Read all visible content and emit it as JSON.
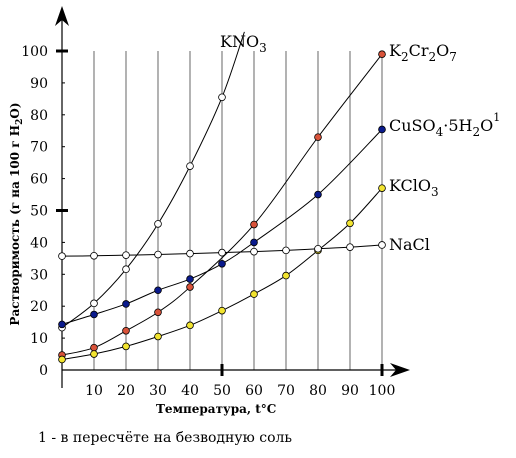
{
  "chart_data": {
    "type": "line",
    "xlabel": "Температура, t°C",
    "ylabel": "Растворимость (г на 100 г H₂O)",
    "xlim": [
      0,
      100
    ],
    "ylim": [
      0,
      100
    ],
    "x_ticks": [
      10,
      20,
      30,
      40,
      50,
      60,
      70,
      80,
      90,
      100
    ],
    "y_ticks": [
      0,
      10,
      20,
      30,
      40,
      50,
      60,
      70,
      80,
      90,
      100
    ],
    "grid": "vertical",
    "series": [
      {
        "name": "KNO3",
        "color": "#ffffff",
        "points": [
          [
            0,
            13.3
          ],
          [
            10,
            20.9
          ],
          [
            20,
            31.6
          ],
          [
            30,
            45.8
          ],
          [
            40,
            63.9
          ],
          [
            50,
            85.5
          ]
        ],
        "extend_to": [
          57,
          106
        ]
      },
      {
        "name": "K2Cr2O7",
        "color": "#d9533a",
        "points": [
          [
            0,
            4.7
          ],
          [
            10,
            7.0
          ],
          [
            20,
            12.3
          ],
          [
            30,
            18.1
          ],
          [
            40,
            26.0
          ],
          [
            60,
            45.6
          ],
          [
            80,
            73.0
          ],
          [
            100,
            99.0
          ]
        ]
      },
      {
        "name": "CuSO4·5H2O",
        "color": "#0a1a8c",
        "points": [
          [
            0,
            14.3
          ],
          [
            10,
            17.4
          ],
          [
            20,
            20.7
          ],
          [
            30,
            25.0
          ],
          [
            40,
            28.5
          ],
          [
            50,
            33.3
          ],
          [
            60,
            40.0
          ],
          [
            80,
            55.0
          ],
          [
            100,
            75.4
          ]
        ]
      },
      {
        "name": "KClO3",
        "color": "#f2e430",
        "points": [
          [
            0,
            3.3
          ],
          [
            10,
            5.0
          ],
          [
            20,
            7.4
          ],
          [
            30,
            10.5
          ],
          [
            40,
            14.0
          ],
          [
            50,
            18.6
          ],
          [
            60,
            23.8
          ],
          [
            70,
            29.6
          ],
          [
            80,
            37.5
          ],
          [
            90,
            46.0
          ],
          [
            100,
            57.0
          ]
        ]
      },
      {
        "name": "NaCl",
        "color": "#ffffff",
        "points": [
          [
            0,
            35.7
          ],
          [
            10,
            35.8
          ],
          [
            20,
            36.0
          ],
          [
            30,
            36.2
          ],
          [
            40,
            36.5
          ],
          [
            50,
            36.8
          ],
          [
            60,
            37.1
          ],
          [
            70,
            37.5
          ],
          [
            80,
            38.0
          ],
          [
            90,
            38.5
          ],
          [
            100,
            39.2
          ]
        ]
      }
    ]
  },
  "series_labels": {
    "kno3": {
      "main": "KNO",
      "sub": "3"
    },
    "k2cr2o7": {
      "a": "K",
      "s1": "2",
      "b": "Cr",
      "s2": "2",
      "c": "O",
      "s3": "7"
    },
    "cuso4": {
      "a": "CuSO",
      "s1": "4",
      "b": "·5H",
      "s2": "2",
      "c": "O",
      "sup": "1"
    },
    "kclo3": {
      "main": "KClO",
      "sub": "3"
    },
    "nacl": {
      "main": "NaCl"
    }
  },
  "ylabel_parts": {
    "pre": "Растворимость (г на 100 г H",
    "sub": "2",
    "post": "O)"
  },
  "footnote": {
    "marker": "1",
    "text": " - в пересчёте на безводную соль"
  }
}
